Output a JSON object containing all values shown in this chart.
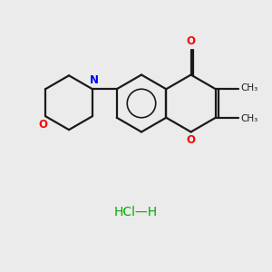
{
  "background_color": "#ebebeb",
  "bond_color": "#1a1a1a",
  "N_color": "#0000ff",
  "O_color": "#ff0000",
  "HCl_color": "#00aa00",
  "line_width": 1.6,
  "fig_width": 3.0,
  "fig_height": 3.0,
  "dpi": 100,
  "xlim": [
    0,
    10
  ],
  "ylim": [
    0,
    10
  ]
}
